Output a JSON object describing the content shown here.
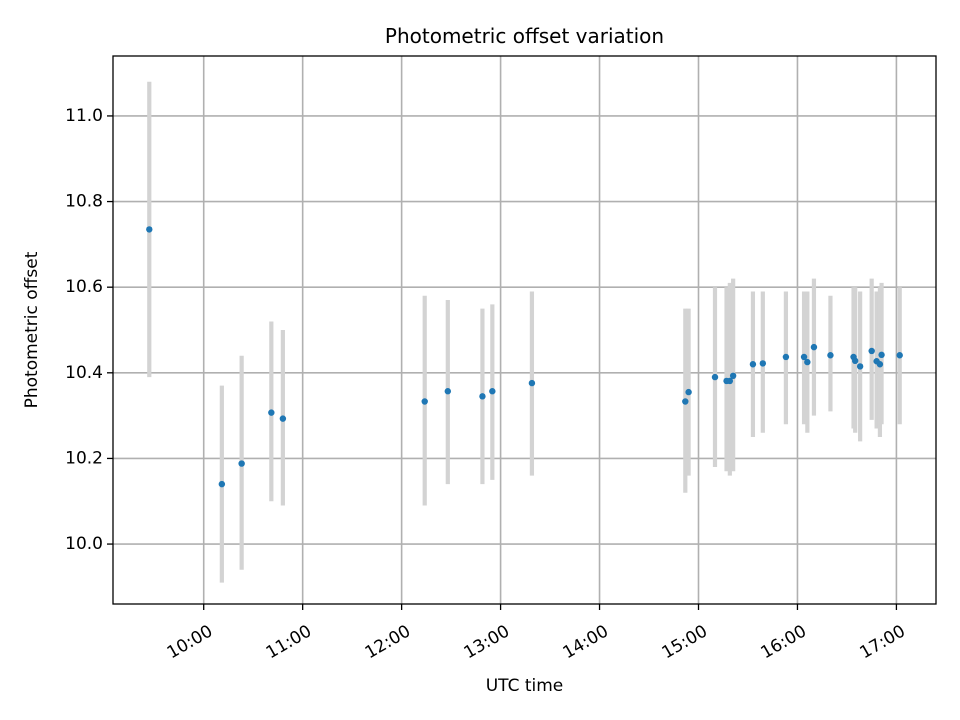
{
  "chart_data": {
    "type": "scatter",
    "title": "Photometric offset variation",
    "xlabel": "UTC time",
    "ylabel": "Photometric offset",
    "x_type": "time",
    "xlim": [
      "09:05",
      "17:24"
    ],
    "ylim": [
      9.86,
      11.14
    ],
    "x_ticks": [
      "10:00",
      "11:00",
      "12:00",
      "13:00",
      "14:00",
      "15:00",
      "16:00",
      "17:00"
    ],
    "y_ticks": [
      "10.0",
      "10.2",
      "10.4",
      "10.6",
      "10.8",
      "11.0"
    ],
    "grid": true,
    "legend": "none",
    "colors": {
      "points": "#1f77b4",
      "error_bars": "#d3d3d3",
      "grid": "#b0b0b0"
    },
    "points": [
      {
        "x": "09:27",
        "y": 10.735,
        "low": 10.39,
        "high": 11.08
      },
      {
        "x": "10:11",
        "y": 10.14,
        "low": 9.91,
        "high": 10.37
      },
      {
        "x": "10:23",
        "y": 10.188,
        "low": 9.94,
        "high": 10.44
      },
      {
        "x": "10:41",
        "y": 10.307,
        "low": 10.1,
        "high": 10.52
      },
      {
        "x": "10:48",
        "y": 10.293,
        "low": 10.09,
        "high": 10.5
      },
      {
        "x": "12:14",
        "y": 10.333,
        "low": 10.09,
        "high": 10.58
      },
      {
        "x": "12:28",
        "y": 10.357,
        "low": 10.14,
        "high": 10.57
      },
      {
        "x": "12:49",
        "y": 10.345,
        "low": 10.14,
        "high": 10.55
      },
      {
        "x": "12:55",
        "y": 10.357,
        "low": 10.15,
        "high": 10.56
      },
      {
        "x": "13:19",
        "y": 10.376,
        "low": 10.16,
        "high": 10.59
      },
      {
        "x": "14:52",
        "y": 10.333,
        "low": 10.12,
        "high": 10.55
      },
      {
        "x": "14:54",
        "y": 10.355,
        "low": 10.16,
        "high": 10.55
      },
      {
        "x": "15:10",
        "y": 10.39,
        "low": 10.18,
        "high": 10.6
      },
      {
        "x": "15:17",
        "y": 10.381,
        "low": 10.17,
        "high": 10.6
      },
      {
        "x": "15:19",
        "y": 10.381,
        "low": 10.16,
        "high": 10.61
      },
      {
        "x": "15:21",
        "y": 10.393,
        "low": 10.17,
        "high": 10.62
      },
      {
        "x": "15:33",
        "y": 10.42,
        "low": 10.25,
        "high": 10.59
      },
      {
        "x": "15:39",
        "y": 10.422,
        "low": 10.26,
        "high": 10.59
      },
      {
        "x": "15:53",
        "y": 10.437,
        "low": 10.28,
        "high": 10.59
      },
      {
        "x": "16:04",
        "y": 10.437,
        "low": 10.28,
        "high": 10.59
      },
      {
        "x": "16:06",
        "y": 10.425,
        "low": 10.26,
        "high": 10.59
      },
      {
        "x": "16:10",
        "y": 10.46,
        "low": 10.3,
        "high": 10.62
      },
      {
        "x": "16:20",
        "y": 10.441,
        "low": 10.31,
        "high": 10.58
      },
      {
        "x": "16:34",
        "y": 10.437,
        "low": 10.27,
        "high": 10.6
      },
      {
        "x": "16:35",
        "y": 10.428,
        "low": 10.26,
        "high": 10.6
      },
      {
        "x": "16:38",
        "y": 10.415,
        "low": 10.24,
        "high": 10.59
      },
      {
        "x": "16:45",
        "y": 10.451,
        "low": 10.29,
        "high": 10.62
      },
      {
        "x": "16:48",
        "y": 10.427,
        "low": 10.27,
        "high": 10.59
      },
      {
        "x": "16:50",
        "y": 10.42,
        "low": 10.25,
        "high": 10.6
      },
      {
        "x": "16:51",
        "y": 10.442,
        "low": 10.28,
        "high": 10.61
      },
      {
        "x": "17:02",
        "y": 10.441,
        "low": 10.28,
        "high": 10.6
      }
    ]
  }
}
